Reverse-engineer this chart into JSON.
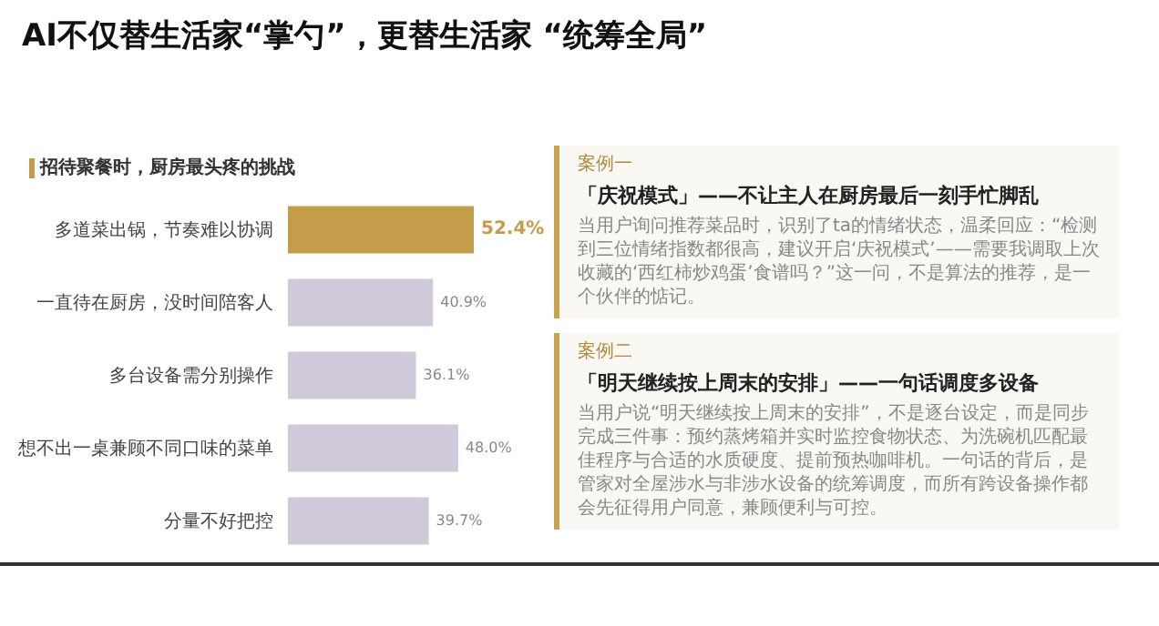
{
  "chart_data": [
    {
      "type": "bar",
      "orientation": "horizontal",
      "title": "AI不仅替生活家“掌勺”，更替生活家 “统筹全局”",
      "subtitle": "招待聚餐时，厨房最头疼的挑战",
      "categories": [
        "多道菜出锅，节奏难以协调",
        "一直待在厨房，没时间陪客人",
        "多台设备需分别操作",
        "想不出一桌兼顾不同口味的菜单",
        "分量不好把控"
      ],
      "values": [
        52.4,
        40.9,
        36.1,
        48.0,
        39.7
      ],
      "value_labels": [
        "52.4%",
        "40.9%",
        "36.1%",
        "48.0%",
        "39.7%"
      ],
      "colors": [
        "#c49d4a",
        "#cfc9d9",
        "#cfc9d9",
        "#cfc9d9",
        "#cfc9d9"
      ]
    },
    {
      "type": "other",
      "annotations": [
        "案例一",
        "「庆祝模式」——不让主人在厨房最后一刻手忙脚乱",
        "当用户询问推荐菜品时，识别了ta的情绪状态，温柔回应：“检测到三位情绪指数都很高，建议开启‘庆祝模式’——需要我调取上次收藏的‘西红柿炒鸡蛋’食谱吗？”这一问，不是算法的推荐，是一个伙伴的惦记。",
        "案例二",
        "「明天继续按上周末的安排」——一句话调度多设备",
        "当用户说“明天继续按上周末的安排”，不是逐台设定，而是同步完成三件事：预约蒸烤箱并实时监控食物状态、为洗碗机匹配最佳程序与合适的水质硬度、提前预热咖啡机。一句话的背后，是管家对全屋涉水与非涉水设备的统筹调度，而所有跨设备操作都会先征得用户同意，兼顾便利与可控。"
      ]
    }
  ]
}
